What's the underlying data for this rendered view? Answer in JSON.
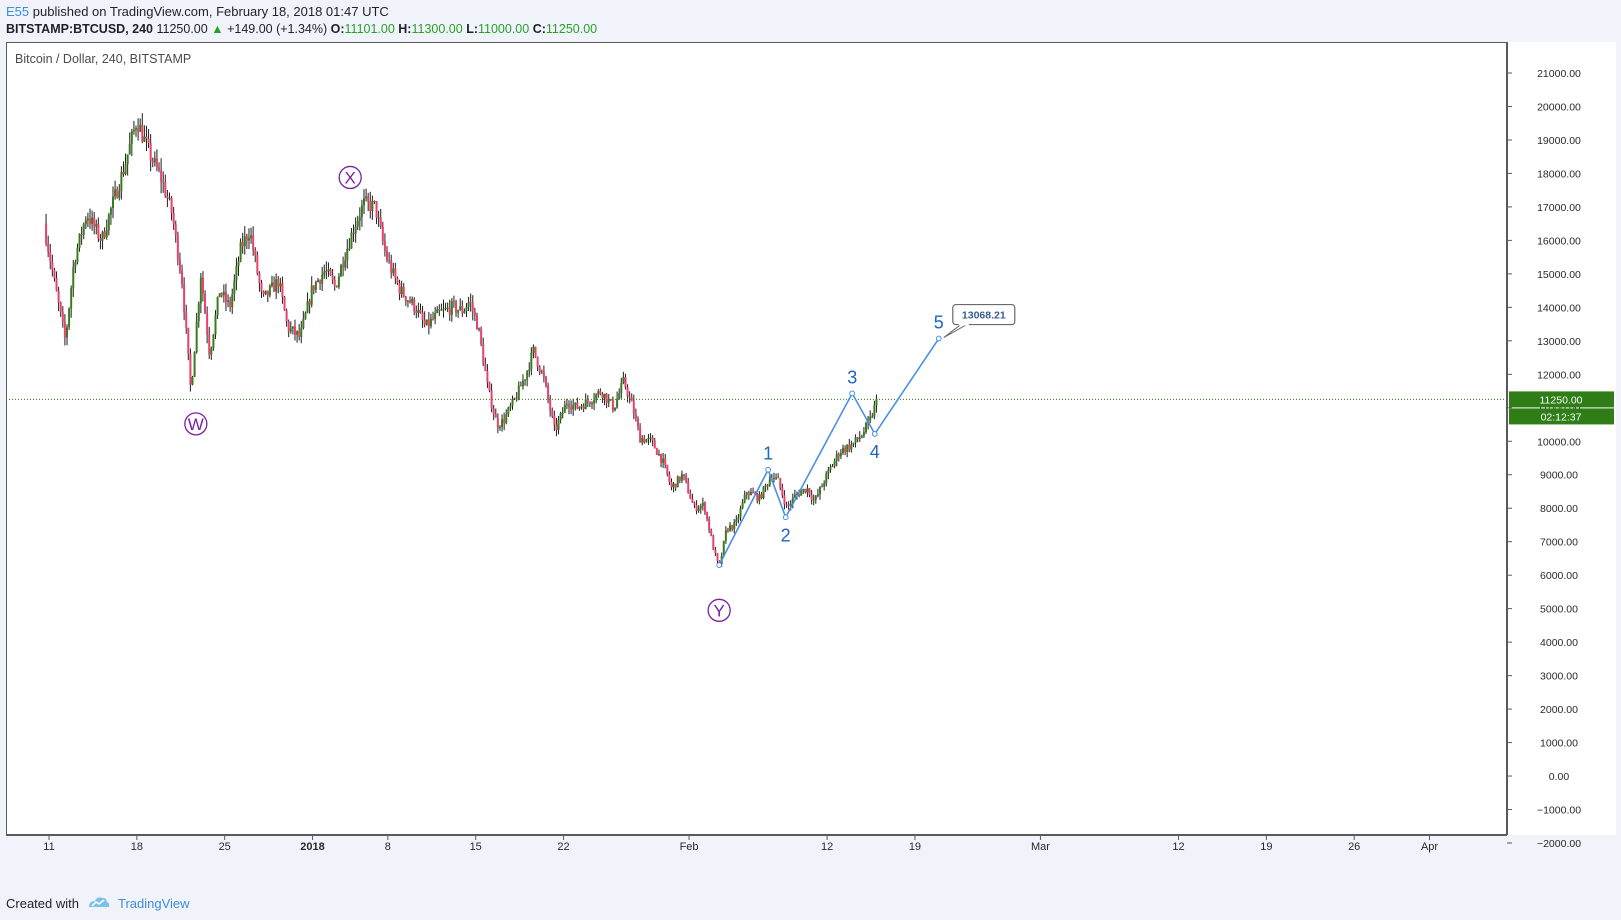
{
  "header": {
    "user": "E55",
    "published_text": "published on TradingView.com, February 18, 2018 01:47 UTC",
    "symbol": "BITSTAMP:BTCUSD, 240",
    "last": "11250.00",
    "change": "+149.00 (+1.34%)",
    "o_label": "O:",
    "o_value": "11101.00",
    "h_label": "H:",
    "h_value": "11300.00",
    "l_label": "L:",
    "l_value": "11000.00",
    "c_label": "C:",
    "c_value": "11250.00"
  },
  "footer": {
    "created_with": "Created with",
    "brand": "TradingView"
  },
  "colors": {
    "up": "#3c7a1e",
    "down": "#e8416b",
    "wick": "#1e1e1e",
    "wave_purple": "#7b1fa2",
    "wave_blue": "#1e63c6",
    "projection": "#4a90e2",
    "price_tag": "#2e7d16"
  },
  "chart_data": {
    "type": "candlestick",
    "title": "Bitcoin / Dollar, 240, BITSTAMP",
    "ylim": [
      -2000,
      21000
    ],
    "y_ticks": [
      21000,
      20000,
      19000,
      18000,
      17000,
      16000,
      15000,
      14000,
      13000,
      12000,
      11000,
      10000,
      9000,
      8000,
      7000,
      6000,
      5000,
      4000,
      3000,
      2000,
      1000,
      0,
      -1000,
      -2000
    ],
    "y_tick_labels": [
      "21000.00",
      "20000.00",
      "19000.00",
      "18000.00",
      "17000.00",
      "16000.00",
      "15000.00",
      "14000.00",
      "13000.00",
      "12000.00",
      "11000.00",
      "10000.00",
      "9000.00",
      "8000.00",
      "7000.00",
      "6000.00",
      "5000.00",
      "4000.00",
      "3000.00",
      "2000.00",
      "1000.00",
      "0.00",
      "−1000.00",
      "−2000.00"
    ],
    "x_ticks": [
      {
        "day": 0,
        "label": "11"
      },
      {
        "day": 7,
        "label": "18"
      },
      {
        "day": 14,
        "label": "25"
      },
      {
        "day": 21,
        "label": "2018"
      },
      {
        "day": 27,
        "label": "8"
      },
      {
        "day": 34,
        "label": "15"
      },
      {
        "day": 41,
        "label": "22"
      },
      {
        "day": 51,
        "label": "Feb"
      },
      {
        "day": 62,
        "label": "12"
      },
      {
        "day": 69,
        "label": "19"
      },
      {
        "day": 79,
        "label": "Mar"
      },
      {
        "day": 90,
        "label": "12"
      },
      {
        "day": 97,
        "label": "19"
      },
      {
        "day": 104,
        "label": "26"
      },
      {
        "day": 110,
        "label": "Apr"
      }
    ],
    "x_axis_note": "day 0 = 2017-12-11",
    "price_path": [
      [
        -0.4,
        16500
      ],
      [
        0.5,
        14600
      ],
      [
        1.3,
        13000
      ],
      [
        2.0,
        15400
      ],
      [
        3.0,
        16800
      ],
      [
        4.2,
        16000
      ],
      [
        5.0,
        17000
      ],
      [
        6.0,
        18200
      ],
      [
        7.0,
        19600
      ],
      [
        8.0,
        18600
      ],
      [
        9.0,
        17800
      ],
      [
        9.8,
        16800
      ],
      [
        10.6,
        14800
      ],
      [
        11.3,
        11500
      ],
      [
        12.1,
        15000
      ],
      [
        12.8,
        12600
      ],
      [
        13.6,
        14500
      ],
      [
        14.4,
        14000
      ],
      [
        15.3,
        15800
      ],
      [
        16.0,
        16300
      ],
      [
        17.0,
        14200
      ],
      [
        18.3,
        14800
      ],
      [
        19.0,
        13400
      ],
      [
        20.0,
        13100
      ],
      [
        21.0,
        14600
      ],
      [
        22.0,
        15100
      ],
      [
        22.8,
        14600
      ],
      [
        23.5,
        15500
      ],
      [
        24.4,
        16500
      ],
      [
        25.1,
        17100
      ],
      [
        26.0,
        17000
      ],
      [
        26.8,
        15600
      ],
      [
        27.4,
        15000
      ],
      [
        28.0,
        14500
      ],
      [
        29.2,
        14000
      ],
      [
        30.0,
        13400
      ],
      [
        31.0,
        13800
      ],
      [
        32.1,
        14000
      ],
      [
        33.0,
        13900
      ],
      [
        33.5,
        14200
      ],
      [
        34.2,
        13400
      ],
      [
        35.0,
        11500
      ],
      [
        35.7,
        10500
      ],
      [
        36.2,
        10600
      ],
      [
        37.2,
        11300
      ],
      [
        38.0,
        12000
      ],
      [
        38.6,
        12700
      ],
      [
        39.4,
        11900
      ],
      [
        40.3,
        10300
      ],
      [
        41.3,
        11200
      ],
      [
        42.0,
        11000
      ],
      [
        43.0,
        11200
      ],
      [
        44.0,
        11500
      ],
      [
        45.0,
        11000
      ],
      [
        45.8,
        11800
      ],
      [
        46.5,
        11000
      ],
      [
        47.1,
        10100
      ],
      [
        48.0,
        10000
      ],
      [
        48.9,
        9400
      ],
      [
        49.6,
        8600
      ],
      [
        50.5,
        9000
      ],
      [
        51.4,
        8000
      ],
      [
        52.2,
        8100
      ],
      [
        53.0,
        6700
      ],
      [
        53.4,
        6200
      ],
      [
        54.0,
        7400
      ],
      [
        54.7,
        7500
      ],
      [
        55.6,
        8500
      ],
      [
        56.6,
        8300
      ],
      [
        57.6,
        9000
      ],
      [
        58.1,
        8800
      ],
      [
        58.8,
        8000
      ],
      [
        59.5,
        8400
      ],
      [
        60.4,
        8600
      ],
      [
        61.0,
        8200
      ],
      [
        62.0,
        9000
      ],
      [
        63.0,
        9700
      ],
      [
        64.0,
        9900
      ],
      [
        64.8,
        10200
      ],
      [
        65.4,
        10600
      ],
      [
        66.0,
        11250
      ]
    ],
    "wave_labels_purple": [
      {
        "label": "W",
        "day": 11.7,
        "value": 10520
      },
      {
        "label": "X",
        "day": 24.0,
        "value": 17880
      },
      {
        "label": "Y",
        "day": 53.4,
        "value": 4950
      }
    ],
    "impulse_path": [
      {
        "label": "",
        "day": 53.4,
        "value": 6300
      },
      {
        "label": "1",
        "day": 57.3,
        "value": 9150
      },
      {
        "label": "2",
        "day": 58.7,
        "value": 7730
      },
      {
        "label": "3",
        "day": 64.0,
        "value": 11430
      },
      {
        "label": "4",
        "day": 65.8,
        "value": 10220
      },
      {
        "label": "5",
        "day": 70.9,
        "value": 13068.21
      }
    ],
    "target_label": "13068.21",
    "last_price": 11250,
    "last_price_label": "11250.00",
    "countdown_label": "02:12:37"
  }
}
